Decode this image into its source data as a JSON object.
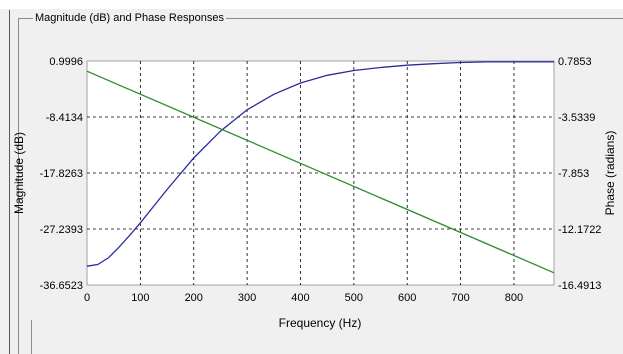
{
  "panel": {
    "title": "Magnitude (dB) and Phase Responses"
  },
  "chart_data": {
    "type": "line",
    "xlabel": "Frequency (Hz)",
    "ylabel": "Magnitude (dB)",
    "y2label": "Phase (radians)",
    "xlim": [
      0,
      875
    ],
    "ylim": [
      -36.6523,
      0.9996
    ],
    "y2lim": [
      -16.4913,
      0.7853
    ],
    "x_ticks": [
      "0",
      "100",
      "200",
      "300",
      "400",
      "500",
      "600",
      "700",
      "800"
    ],
    "y_ticks": [
      "0.9996",
      "-8.4134",
      "-17.8263",
      "-27.2393",
      "-36.6523"
    ],
    "y2_ticks": [
      "0.7853",
      "-3.5339",
      "-7.853",
      "-12.1722",
      "-16.4913"
    ],
    "grid": true,
    "series": [
      {
        "axis": "left",
        "color": "#2b2b9e",
        "x": [
          0,
          20,
          40,
          60,
          80,
          100,
          150,
          200,
          250,
          300,
          350,
          400,
          450,
          500,
          550,
          600,
          650,
          700,
          750,
          800,
          850,
          875
        ],
        "y": [
          -33.5,
          -33.2,
          -32.1,
          -30.3,
          -28.3,
          -26.2,
          -20.6,
          -15.3,
          -10.8,
          -7.2,
          -4.6,
          -2.7,
          -1.4,
          -0.6,
          -0.1,
          0.3,
          0.55,
          0.75,
          0.85,
          0.85,
          0.85,
          0.85
        ]
      },
      {
        "axis": "right",
        "color": "#2e8b2e",
        "x": [
          0,
          875
        ],
        "y": [
          0.0,
          -15.55
        ]
      }
    ]
  }
}
